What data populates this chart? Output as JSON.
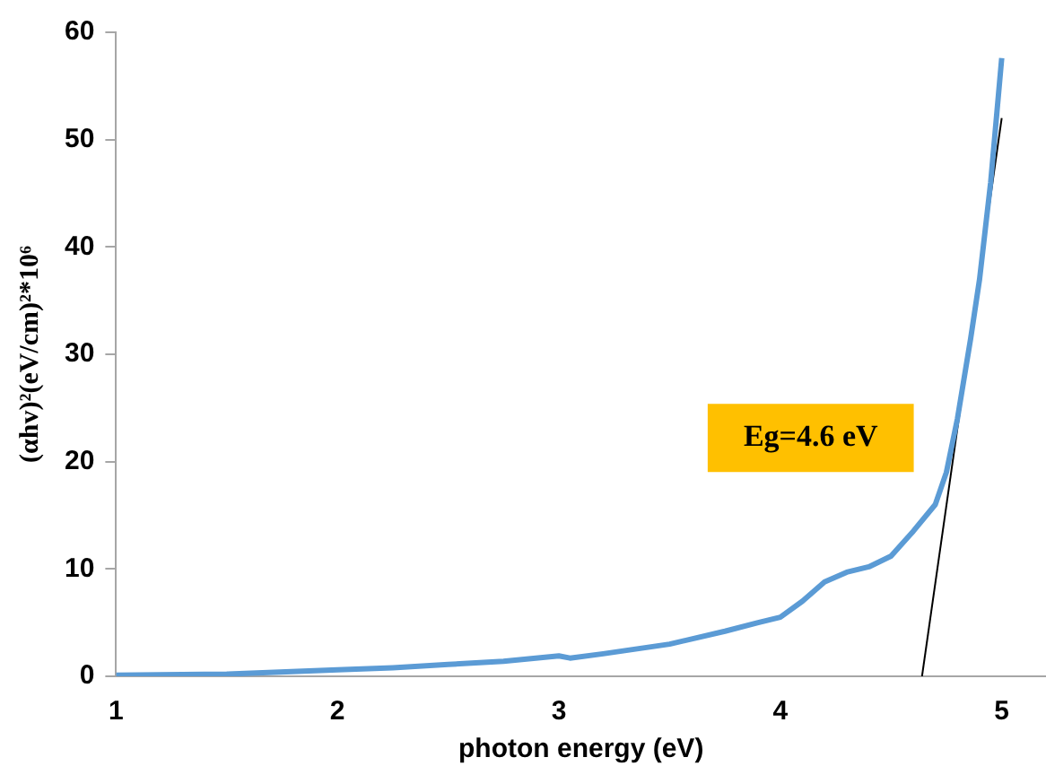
{
  "chart_data": {
    "type": "line",
    "xlabel": "photon energy (eV)",
    "ylabel": "(αhv)²(eV/cm)²*10⁶",
    "xlim": [
      1,
      5.2
    ],
    "xticks": [
      1,
      2,
      3,
      4,
      5
    ],
    "ylim": [
      0,
      60
    ],
    "yticks": [
      0,
      10,
      20,
      30,
      40,
      50,
      60
    ],
    "grid": false,
    "legend": false,
    "marker": "none",
    "annotations": [
      "Eg=4.6 eV"
    ],
    "series": [
      {
        "color": "#5b9bd5",
        "x": [
          1,
          1.5,
          2,
          2.25,
          2.5,
          2.75,
          3,
          3.05,
          3.2,
          3.5,
          3.75,
          3.9,
          4,
          4.1,
          4.2,
          4.3,
          4.4,
          4.5,
          4.6,
          4.7,
          4.75,
          4.8,
          4.86,
          4.9,
          4.95,
          5
        ],
        "values": [
          0.1,
          0.2,
          0.6,
          0.8,
          1.1,
          1.4,
          1.9,
          1.7,
          2.1,
          3,
          4.2,
          5,
          5.5,
          7,
          8.8,
          9.7,
          10.2,
          11.2,
          13.5,
          16,
          19,
          24,
          31.5,
          37,
          46,
          57.6
        ]
      },
      {
        "type": "line",
        "color": "#000000",
        "x": [
          4.64,
          5
        ],
        "values": [
          0,
          52
        ]
      }
    ]
  }
}
